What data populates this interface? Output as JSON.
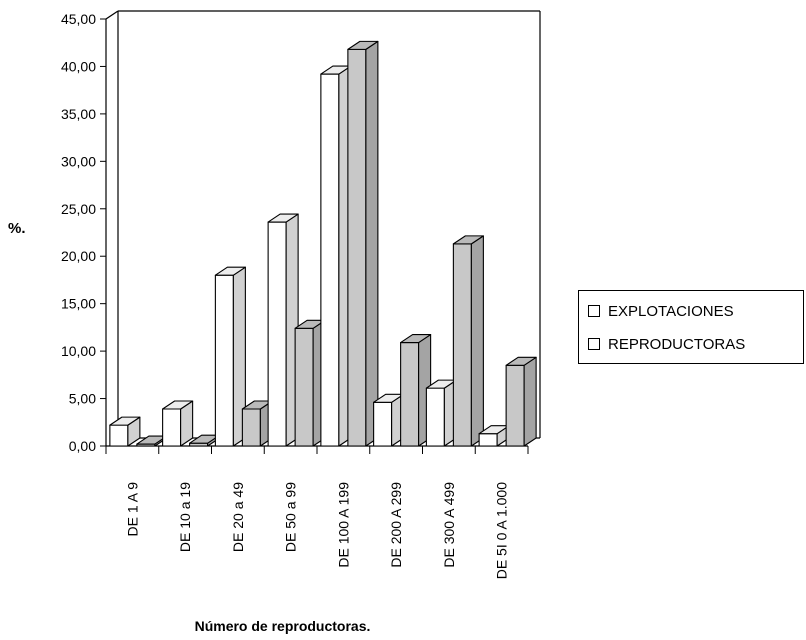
{
  "chart_data": {
    "type": "bar",
    "title": "",
    "xlabel": "Número de reproductoras.",
    "ylabel": "%.",
    "ylim": [
      0,
      45
    ],
    "y_ticks": [
      "0,00",
      "5,00",
      "10,00",
      "15,00",
      "20,00",
      "25,00",
      "30,00",
      "35,00",
      "40,00",
      "45,00"
    ],
    "categories": [
      "DE 1 A 9",
      "DE 10 a 19",
      "DE 20 a 49",
      "DE 50 a 99",
      "DE 100 A 199",
      "DE 200 A 299",
      "DE 300 A 499",
      "DE 5I 0 A 1.000"
    ],
    "series": [
      {
        "name": "EXPLOTACIONES",
        "values": [
          2.2,
          3.9,
          18.0,
          23.6,
          39.2,
          4.6,
          6.1,
          1.3
        ],
        "color": "#ffffff"
      },
      {
        "name": "REPRODUCTORAS",
        "values": [
          0.2,
          0.3,
          3.9,
          12.4,
          41.8,
          10.9,
          21.3,
          8.5
        ],
        "color": "#c8c8c8"
      }
    ],
    "legend_position": "right",
    "grid": false,
    "style": "3d-bar"
  },
  "legend": {
    "items": [
      {
        "label": "EXPLOTACIONES"
      },
      {
        "label": "REPRODUCTORAS"
      }
    ]
  }
}
